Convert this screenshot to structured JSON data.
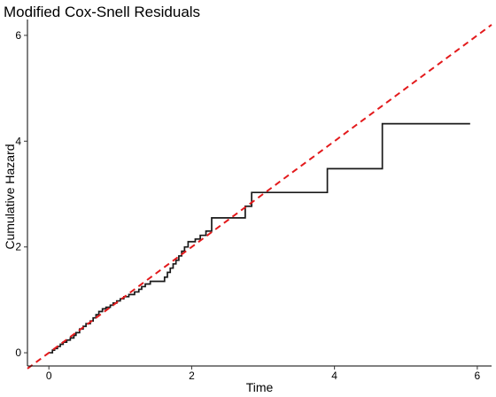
{
  "chart_data": {
    "type": "line",
    "title": "Modified Cox-Snell Residuals",
    "xlabel": "Time",
    "ylabel": "Cumulative Hazard",
    "xlim": [
      -0.3,
      6.2
    ],
    "ylim": [
      -0.25,
      6.3
    ],
    "x_ticks": [
      0,
      2,
      4,
      6
    ],
    "y_ticks": [
      0,
      2,
      4,
      6
    ],
    "grid": false,
    "legend": "none",
    "colors": {
      "step": "#1a1a1a",
      "reference": "#e31a1c",
      "axis": "#000000"
    },
    "series": [
      {
        "kind": "step",
        "x": [
          0.0,
          0.05,
          0.08,
          0.12,
          0.16,
          0.2,
          0.25,
          0.3,
          0.35,
          0.38,
          0.43,
          0.48,
          0.52,
          0.58,
          0.62,
          0.66,
          0.7,
          0.75,
          0.8,
          0.86,
          0.9,
          0.95,
          1.0,
          1.05,
          1.12,
          1.2,
          1.26,
          1.3,
          1.35,
          1.42,
          1.62,
          1.66,
          1.7,
          1.74,
          1.78,
          1.82,
          1.86,
          1.9,
          1.95,
          2.05,
          2.12,
          2.2,
          2.28,
          2.75,
          2.84,
          3.9,
          4.67,
          5.9
        ],
        "y": [
          0.0,
          0.05,
          0.08,
          0.12,
          0.16,
          0.2,
          0.24,
          0.28,
          0.33,
          0.38,
          0.45,
          0.5,
          0.55,
          0.6,
          0.66,
          0.72,
          0.78,
          0.83,
          0.86,
          0.9,
          0.94,
          0.98,
          1.02,
          1.06,
          1.1,
          1.15,
          1.2,
          1.25,
          1.3,
          1.35,
          1.43,
          1.52,
          1.6,
          1.68,
          1.75,
          1.83,
          1.92,
          2.0,
          2.1,
          2.15,
          2.22,
          2.3,
          2.55,
          2.77,
          3.03,
          3.48,
          4.33,
          4.33
        ]
      },
      {
        "kind": "reference",
        "x": [
          -0.3,
          6.2
        ],
        "y": [
          -0.3,
          6.2
        ]
      }
    ]
  }
}
